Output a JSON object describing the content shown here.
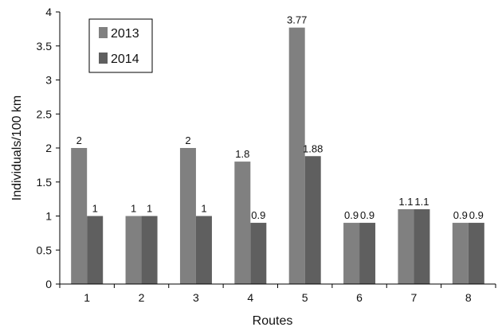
{
  "colors": {
    "s2013": "#808080",
    "s2014": "#5f5f5f",
    "axis": "#000000"
  },
  "chart_data": {
    "type": "bar",
    "xlabel": "Routes",
    "ylabel": "Individuals/100 km",
    "categories": [
      "1",
      "2",
      "3",
      "4",
      "5",
      "6",
      "7",
      "8"
    ],
    "ylim": [
      0,
      4
    ],
    "yticks": [
      "0",
      "0.5",
      "1",
      "1.5",
      "2",
      "2.5",
      "3",
      "3.5",
      "4"
    ],
    "grid": false,
    "legend_position": "top-left",
    "series": [
      {
        "name": "2013",
        "values": [
          2,
          1,
          2,
          1.8,
          3.77,
          0.9,
          1.1,
          0.9
        ],
        "labels": [
          "2",
          "1",
          "2",
          "1.8",
          "3.77",
          "0.9",
          "1.1",
          "0.9"
        ]
      },
      {
        "name": "2014",
        "values": [
          1,
          1,
          1,
          0.9,
          1.88,
          0.9,
          1.1,
          0.9
        ],
        "labels": [
          "1",
          "1",
          "1",
          "0.9",
          "1.88",
          "0.9",
          "1.1",
          "0.9"
        ]
      }
    ]
  }
}
